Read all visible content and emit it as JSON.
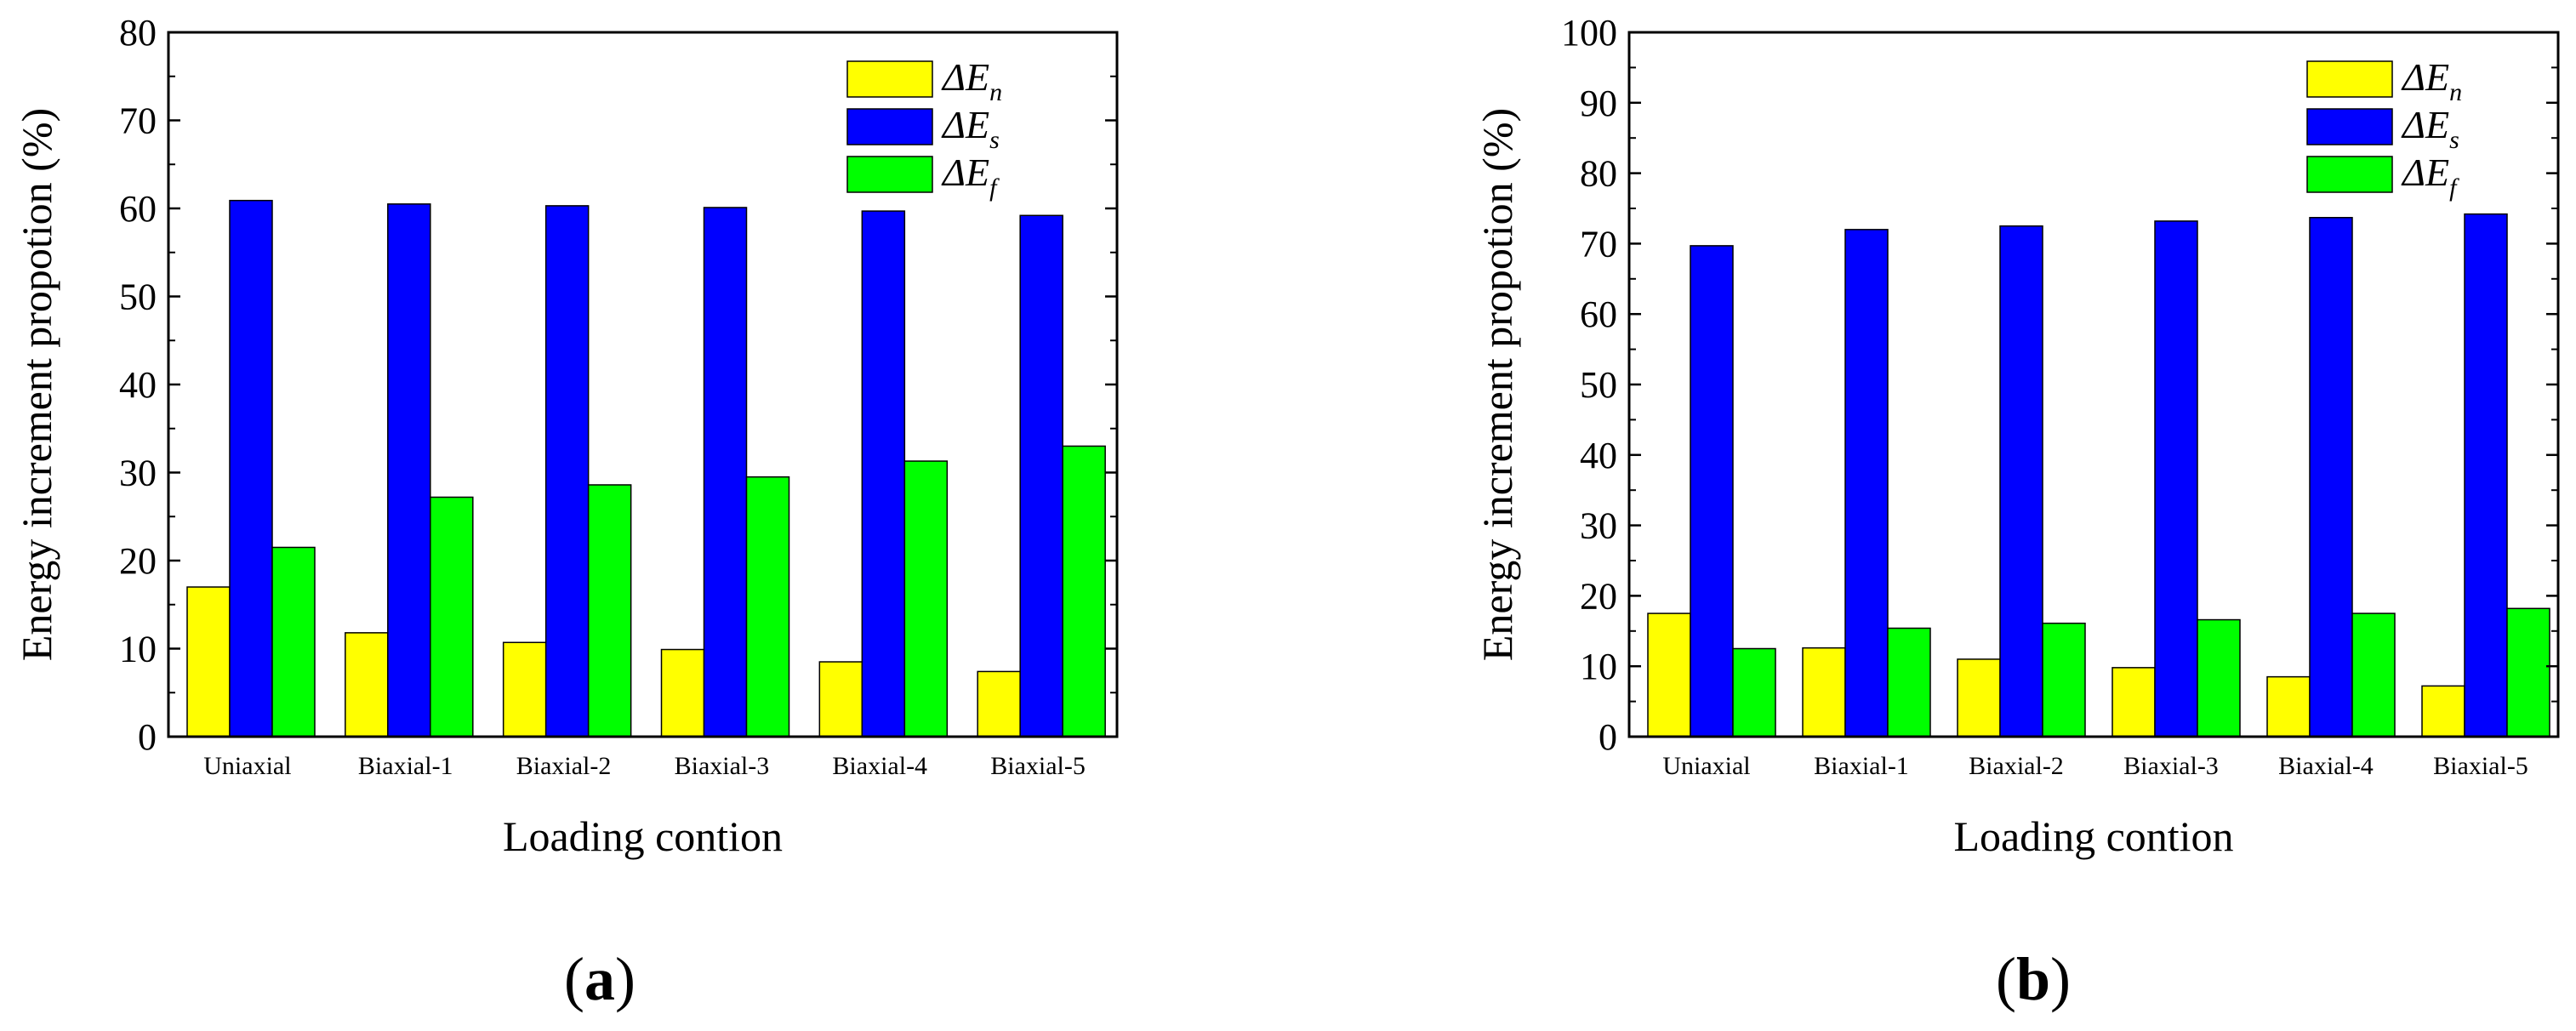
{
  "colors": {
    "dEn": "#ffff00",
    "dEs": "#0000ff",
    "dEf": "#00ff00",
    "axis": "#000000"
  },
  "legend_text": {
    "symbol": "ΔE",
    "subs": [
      "n",
      "s",
      "f"
    ]
  },
  "chart_data": [
    {
      "type": "bar",
      "panel_label": "a",
      "panel_open": "(",
      "panel_close": ")",
      "title": "",
      "xlabel": "Loading contion",
      "ylabel": "Energy increment propotion (%)",
      "ylim": [
        0,
        80
      ],
      "yticks": [
        "0",
        "10",
        "20",
        "30",
        "40",
        "50",
        "60",
        "70",
        "80"
      ],
      "categories": [
        "Uniaxial",
        "Biaxial-1",
        "Biaxial-2",
        "Biaxial-3",
        "Biaxial-4",
        "Biaxial-5"
      ],
      "legend_position": "top-right",
      "series": [
        {
          "name": "ΔEn",
          "values": [
            17.0,
            11.8,
            10.7,
            9.9,
            8.5,
            7.4
          ]
        },
        {
          "name": "ΔEs",
          "values": [
            60.9,
            60.5,
            60.3,
            60.1,
            59.7,
            59.2
          ]
        },
        {
          "name": "ΔEf",
          "values": [
            21.5,
            27.2,
            28.6,
            29.5,
            31.3,
            33.0
          ]
        }
      ]
    },
    {
      "type": "bar",
      "panel_label": "b",
      "panel_open": "(",
      "panel_close": ")",
      "title": "",
      "xlabel": "Loading contion",
      "ylabel": "Energy increment propotion (%)",
      "ylim": [
        0,
        100
      ],
      "yticks": [
        "0",
        "10",
        "20",
        "30",
        "40",
        "50",
        "60",
        "70",
        "80",
        "90",
        "100"
      ],
      "categories": [
        "Uniaxial",
        "Biaxial-1",
        "Biaxial-2",
        "Biaxial-3",
        "Biaxial-4",
        "Biaxial-5"
      ],
      "legend_position": "top-right",
      "series": [
        {
          "name": "ΔEn",
          "values": [
            17.5,
            12.6,
            11.0,
            9.8,
            8.5,
            7.2
          ]
        },
        {
          "name": "ΔEs",
          "values": [
            69.7,
            72.0,
            72.5,
            73.2,
            73.7,
            74.2
          ]
        },
        {
          "name": "ΔEf",
          "values": [
            12.5,
            15.4,
            16.1,
            16.6,
            17.5,
            18.2
          ]
        }
      ]
    }
  ]
}
